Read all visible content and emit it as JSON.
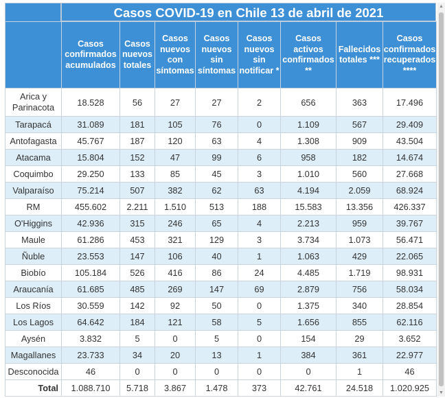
{
  "title": "Casos COVID-19 en Chile 13 de abril de 2021",
  "headers": [
    "",
    "Casos confirmados acumulados",
    "Casos nuevos totales",
    "Casos nuevos con síntomas",
    "Casos nuevos sin síntomas",
    "Casos nuevos sin notificar *",
    "Casos activos confirmados **",
    "Fallecidos totales ***",
    "Casos confirmados recuperados ****"
  ],
  "rows": [
    [
      "Arica y Parinacota",
      "18.528",
      "56",
      "27",
      "27",
      "2",
      "656",
      "363",
      "17.496"
    ],
    [
      "Tarapacá",
      "31.089",
      "181",
      "105",
      "76",
      "0",
      "1.109",
      "567",
      "29.409"
    ],
    [
      "Antofagasta",
      "45.767",
      "187",
      "120",
      "63",
      "4",
      "1.308",
      "909",
      "43.504"
    ],
    [
      "Atacama",
      "15.804",
      "152",
      "47",
      "99",
      "6",
      "958",
      "182",
      "14.674"
    ],
    [
      "Coquimbo",
      "29.250",
      "133",
      "85",
      "45",
      "3",
      "1.010",
      "560",
      "27.668"
    ],
    [
      "Valparaíso",
      "75.214",
      "507",
      "382",
      "62",
      "63",
      "4.194",
      "2.059",
      "68.924"
    ],
    [
      "RM",
      "455.602",
      "2.211",
      "1.510",
      "513",
      "188",
      "15.583",
      "13.356",
      "426.337"
    ],
    [
      "O'Higgins",
      "42.936",
      "315",
      "246",
      "65",
      "4",
      "2.213",
      "959",
      "39.767"
    ],
    [
      "Maule",
      "61.286",
      "453",
      "321",
      "129",
      "3",
      "3.734",
      "1.073",
      "56.471"
    ],
    [
      "Ñuble",
      "23.553",
      "147",
      "106",
      "40",
      "1",
      "1.063",
      "429",
      "22.065"
    ],
    [
      "Biobío",
      "105.184",
      "526",
      "416",
      "86",
      "24",
      "4.485",
      "1.719",
      "98.931"
    ],
    [
      "Araucanía",
      "61.685",
      "485",
      "269",
      "147",
      "69",
      "2.879",
      "756",
      "58.034"
    ],
    [
      "Los Ríos",
      "30.559",
      "142",
      "92",
      "50",
      "0",
      "1.375",
      "340",
      "28.854"
    ],
    [
      "Los Lagos",
      "64.642",
      "184",
      "121",
      "58",
      "5",
      "1.656",
      "855",
      "62.116"
    ],
    [
      "Aysén",
      "3.832",
      "5",
      "0",
      "5",
      "0",
      "154",
      "29",
      "3.652"
    ],
    [
      "Magallanes",
      "23.733",
      "34",
      "20",
      "13",
      "1",
      "384",
      "361",
      "22.977"
    ],
    [
      "Desconocida",
      "46",
      "0",
      "0",
      "0",
      "0",
      "0",
      "1",
      "46"
    ]
  ],
  "total": [
    "Total",
    "1.088.710",
    "5.718",
    "3.867",
    "1.478",
    "373",
    "42.761",
    "24.518",
    "1.020.925"
  ]
}
